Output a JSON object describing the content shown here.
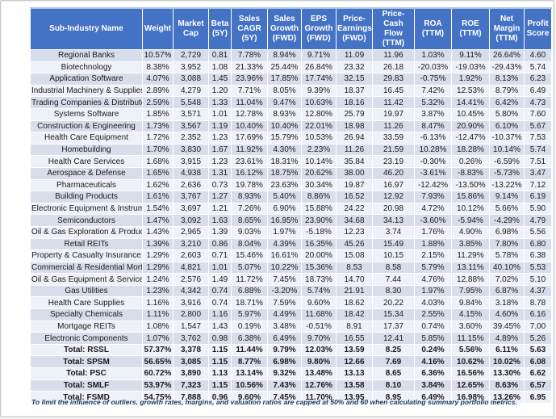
{
  "colors": {
    "header_bg": "#4472C4",
    "band_odd": "#D8DDEC",
    "band_even": "#EFF1F8",
    "footnote_text": "#17375E"
  },
  "table": {
    "columns": [
      "Sub-Industry Name",
      "Weight",
      "Market Cap",
      "Beta (5Y)",
      "Sales CAGR (5Y)",
      "Sales Growth (FWD)",
      "EPS Growth (FWD)",
      "Price-Earnings (FWD)",
      "Price-Cash Flow (TTM)",
      "ROA (TTM)",
      "ROE (TTM)",
      "Net Margin (TTM)",
      "Profit Score"
    ],
    "rows": [
      {
        "total": false,
        "cells": [
          "Regional Banks",
          "10.57%",
          "2,729",
          "0.81",
          "7.78%",
          "8.94%",
          "9.71%",
          "11.09",
          "11.96",
          "1.03%",
          "9.11%",
          "26.64%",
          "4.60"
        ]
      },
      {
        "total": false,
        "cells": [
          "Biotechnology",
          "8.38%",
          "3,952",
          "1.08",
          "21.33%",
          "25.44%",
          "26.84%",
          "23.32",
          "26.18",
          "-20.03%",
          "-19.03%",
          "-29.43%",
          "5.74"
        ]
      },
      {
        "total": false,
        "cells": [
          "Application Software",
          "4.07%",
          "3,088",
          "1.45",
          "23.96%",
          "17.85%",
          "17.74%",
          "32.15",
          "29.83",
          "-0.75%",
          "1.92%",
          "8.13%",
          "6.23"
        ]
      },
      {
        "total": false,
        "cells": [
          "Industrial Machinery & Supplies",
          "2.89%",
          "4,279",
          "1.20",
          "7.71%",
          "8.05%",
          "9.39%",
          "18.37",
          "16.45",
          "7.42%",
          "12.53%",
          "8.79%",
          "6.49"
        ]
      },
      {
        "total": false,
        "cells": [
          "Trading Companies & Distributors",
          "2.59%",
          "5,548",
          "1.33",
          "11.04%",
          "9.47%",
          "10.63%",
          "18.16",
          "11.42",
          "5.32%",
          "14.41%",
          "6.42%",
          "4.73"
        ]
      },
      {
        "total": false,
        "cells": [
          "Systems Software",
          "1.85%",
          "3,571",
          "1.01",
          "12.78%",
          "8.93%",
          "12.80%",
          "25.79",
          "19.97",
          "3.87%",
          "10.45%",
          "5.80%",
          "7.60"
        ]
      },
      {
        "total": false,
        "cells": [
          "Construction & Engineering",
          "1.73%",
          "3,567",
          "1.19",
          "10.40%",
          "10.40%",
          "22.01%",
          "18.98",
          "11.26",
          "8.47%",
          "20.90%",
          "6.10%",
          "5.67"
        ]
      },
      {
        "total": false,
        "cells": [
          "Health Care Equipment",
          "1.72%",
          "2,352",
          "1.23",
          "17.69%",
          "15.79%",
          "10.53%",
          "26.94",
          "33.59",
          "-6.13%",
          "-12.47%",
          "-10.37%",
          "7.53"
        ]
      },
      {
        "total": false,
        "cells": [
          "Homebuilding",
          "1.70%",
          "3,830",
          "1.67",
          "11.92%",
          "4.30%",
          "2.23%",
          "11.26",
          "21.59",
          "10.28%",
          "18.28%",
          "10.14%",
          "5.74"
        ]
      },
      {
        "total": false,
        "cells": [
          "Health Care Services",
          "1.68%",
          "3,915",
          "1.23",
          "23.61%",
          "18.31%",
          "10.14%",
          "35.84",
          "23.19",
          "-0.30%",
          "0.26%",
          "-6.59%",
          "7.51"
        ]
      },
      {
        "total": false,
        "cells": [
          "Aerospace & Defense",
          "1.65%",
          "4,938",
          "1.31",
          "16.12%",
          "18.75%",
          "20.62%",
          "38.00",
          "46.20",
          "-3.61%",
          "-8.83%",
          "-5.73%",
          "3.47"
        ]
      },
      {
        "total": false,
        "cells": [
          "Pharmaceuticals",
          "1.62%",
          "2,636",
          "0.73",
          "19.78%",
          "23.63%",
          "30.34%",
          "19.87",
          "16.97",
          "-12.42%",
          "-13.50%",
          "-13.22%",
          "7.12"
        ]
      },
      {
        "total": false,
        "cells": [
          "Building Products",
          "1.61%",
          "3,767",
          "1.27",
          "8.93%",
          "5.40%",
          "8.86%",
          "16.52",
          "12.92",
          "7.93%",
          "15.86%",
          "9.14%",
          "6.19"
        ]
      },
      {
        "total": false,
        "cells": [
          "Electronic Equipment & Instruments",
          "1.54%",
          "3,697",
          "1.21",
          "7.26%",
          "6.90%",
          "15.88%",
          "24.22",
          "20.98",
          "4.72%",
          "10.12%",
          "5.66%",
          "5.90"
        ]
      },
      {
        "total": false,
        "cells": [
          "Semiconductors",
          "1.47%",
          "3,092",
          "1.63",
          "8.65%",
          "16.95%",
          "23.90%",
          "34.68",
          "34.13",
          "-3.60%",
          "-5.94%",
          "-4.29%",
          "4.79"
        ]
      },
      {
        "total": false,
        "cells": [
          "Oil & Gas Exploration & Production",
          "1.43%",
          "2,965",
          "1.39",
          "9.03%",
          "1.97%",
          "-5.18%",
          "12.23",
          "3.74",
          "1.76%",
          "4.90%",
          "6.98%",
          "5.56"
        ]
      },
      {
        "total": false,
        "cells": [
          "Retail REITs",
          "1.39%",
          "3,210",
          "0.86",
          "8.04%",
          "4.39%",
          "16.35%",
          "45.26",
          "15.49",
          "1.88%",
          "3.85%",
          "7.80%",
          "6.80"
        ]
      },
      {
        "total": false,
        "cells": [
          "Property & Casualty Insurance",
          "1.29%",
          "2,603",
          "0.71",
          "15.46%",
          "16.61%",
          "20.00%",
          "15.08",
          "10.15",
          "2.15%",
          "11.29%",
          "5.78%",
          "6.38"
        ]
      },
      {
        "total": false,
        "cells": [
          "Commercial & Residential Mortgage",
          "1.29%",
          "4,821",
          "1.01",
          "5.07%",
          "10.22%",
          "15.36%",
          "8.53",
          "8.58",
          "5.79%",
          "13.11%",
          "40.10%",
          "5.53"
        ]
      },
      {
        "total": false,
        "cells": [
          "Oil & Gas Equipment & Services",
          "1.24%",
          "2,576",
          "1.49",
          "11.72%",
          "7.45%",
          "18.73%",
          "14.70",
          "7.44",
          "4.76%",
          "12.88%",
          "7.02%",
          "5.10"
        ]
      },
      {
        "total": false,
        "cells": [
          "Gas Utilities",
          "1.23%",
          "4,342",
          "0.74",
          "6.88%",
          "-3.20%",
          "5.74%",
          "21.91",
          "8.30",
          "1.97%",
          "7.95%",
          "6.87%",
          "4.37"
        ]
      },
      {
        "total": false,
        "cells": [
          "Health Care Supplies",
          "1.16%",
          "3,916",
          "0.74",
          "18.71%",
          "7.59%",
          "9.60%",
          "18.62",
          "20.22",
          "4.03%",
          "9.84%",
          "3.18%",
          "8.78"
        ]
      },
      {
        "total": false,
        "cells": [
          "Specialty Chemicals",
          "1.11%",
          "2,800",
          "1.16",
          "5.97%",
          "4.49%",
          "11.68%",
          "18.42",
          "15.34",
          "2.55%",
          "4.15%",
          "4.60%",
          "6.16"
        ]
      },
      {
        "total": false,
        "cells": [
          "Mortgage REITs",
          "1.08%",
          "1,547",
          "1.43",
          "0.19%",
          "3.48%",
          "-0.51%",
          "8.91",
          "17.37",
          "0.74%",
          "3.60%",
          "39.45%",
          "7.00"
        ]
      },
      {
        "total": false,
        "cells": [
          "Electronic Components",
          "1.07%",
          "3,762",
          "0.98",
          "6.38%",
          "6.49%",
          "9.70%",
          "16.55",
          "12.41",
          "5.85%",
          "11.15%",
          "4.89%",
          "5.26"
        ]
      },
      {
        "total": true,
        "cells": [
          "Total: RSSL",
          "57.37%",
          "3,378",
          "1.15",
          "11.44%",
          "9.79%",
          "12.03%",
          "13.59",
          "8.25",
          "0.24%",
          "5.56%",
          "6.11%",
          "5.63"
        ]
      },
      {
        "total": true,
        "cells": [
          "Total: SPSM",
          "56.65%",
          "3,085",
          "1.15",
          "8.77%",
          "6.98%",
          "9.80%",
          "12.66",
          "7.69",
          "4.16%",
          "10.62%",
          "10.02%",
          "6.08"
        ]
      },
      {
        "total": true,
        "cells": [
          "Total: PSC",
          "60.72%",
          "3,890",
          "1.13",
          "13.14%",
          "9.32%",
          "13.48%",
          "13.13",
          "8.65",
          "6.36%",
          "16.56%",
          "13.30%",
          "6.62"
        ]
      },
      {
        "total": true,
        "cells": [
          "Total: SMLF",
          "53.97%",
          "7,323",
          "1.15",
          "10.56%",
          "7.43%",
          "12.76%",
          "13.58",
          "8.10",
          "3.84%",
          "12.65%",
          "8.63%",
          "6.57"
        ]
      },
      {
        "total": true,
        "cells": [
          "Total: FSMD",
          "54.75%",
          "7,888",
          "0.96",
          "9.60%",
          "7.45%",
          "11.70%",
          "13.95",
          "8.95",
          "6.49%",
          "16.98%",
          "13.26%",
          "6.95"
        ]
      }
    ]
  },
  "footnote": "To limit the influence of outliers, growth rates, margins, and valuation ratios are capped at 50% and 60 when calculating summary portfolio metrics."
}
